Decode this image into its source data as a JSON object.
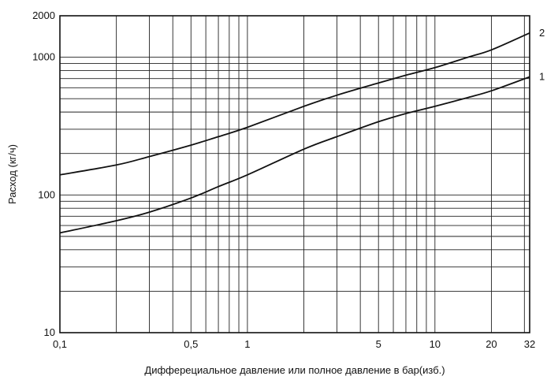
{
  "chart_data": {
    "type": "line",
    "xscale": "log",
    "yscale": "log",
    "xlim": [
      0.1,
      32
    ],
    "ylim": [
      10,
      2000
    ],
    "xlabel": "Дифферециальное давление или полное давление в бар(изб.)",
    "ylabel": "Расход (кг/ч)",
    "x_tick_labels": [
      {
        "value": 0.1,
        "label": "0,1"
      },
      {
        "value": 0.5,
        "label": "0,5"
      },
      {
        "value": 1,
        "label": "1"
      },
      {
        "value": 5,
        "label": "5"
      },
      {
        "value": 10,
        "label": "10"
      },
      {
        "value": 20,
        "label": "20"
      },
      {
        "value": 32,
        "label": "32"
      }
    ],
    "y_tick_labels": [
      {
        "value": 10,
        "label": "10"
      },
      {
        "value": 100,
        "label": "100"
      },
      {
        "value": 1000,
        "label": "1000"
      },
      {
        "value": 2000,
        "label": "2000"
      }
    ],
    "x_gridlines": [
      0.1,
      0.2,
      0.3,
      0.4,
      0.5,
      0.6,
      0.7,
      0.8,
      0.9,
      1,
      2,
      3,
      4,
      5,
      6,
      7,
      8,
      9,
      10,
      20,
      30,
      32
    ],
    "y_gridlines": [
      10,
      20,
      30,
      40,
      50,
      60,
      70,
      80,
      90,
      100,
      200,
      300,
      400,
      500,
      600,
      700,
      800,
      900,
      1000,
      2000
    ],
    "grid": true,
    "line_color": "#111111",
    "grid_color": "#222222",
    "series": [
      {
        "name": "2",
        "x": [
          0.1,
          0.2,
          0.3,
          0.5,
          0.7,
          1,
          2,
          3,
          5,
          7,
          10,
          15,
          20,
          32
        ],
        "y": [
          140,
          165,
          190,
          230,
          265,
          310,
          440,
          530,
          650,
          740,
          840,
          1000,
          1130,
          1500
        ]
      },
      {
        "name": "1",
        "x": [
          0.1,
          0.2,
          0.3,
          0.5,
          0.7,
          1,
          2,
          3,
          5,
          7,
          10,
          15,
          20,
          32
        ],
        "y": [
          53,
          65,
          75,
          95,
          115,
          140,
          215,
          265,
          340,
          390,
          440,
          510,
          570,
          720
        ]
      }
    ]
  }
}
